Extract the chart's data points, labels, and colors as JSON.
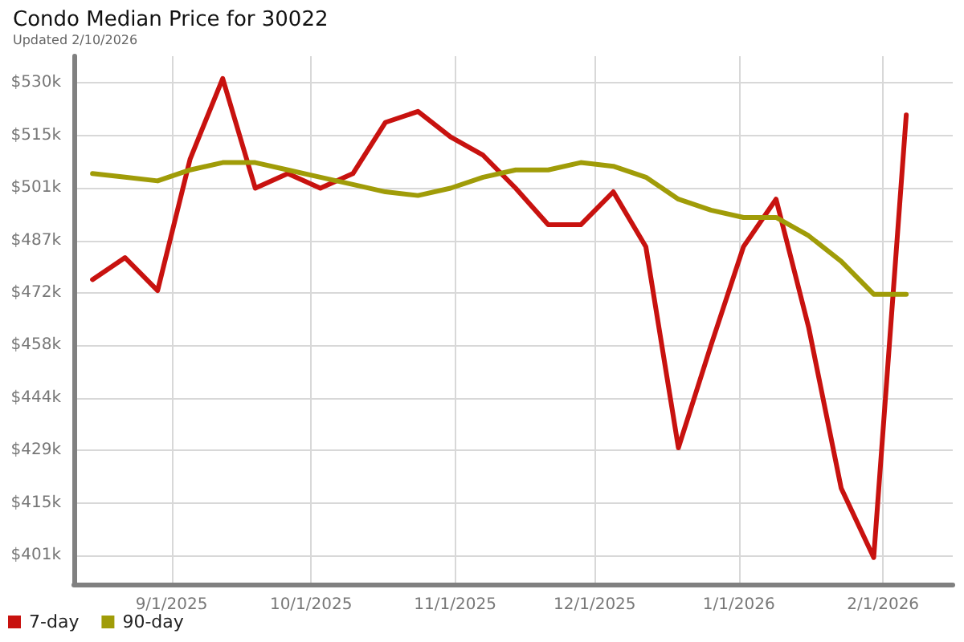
{
  "chart_data": {
    "type": "line",
    "title": "Condo Median Price for 30022",
    "subtitle": "Updated 2/10/2026",
    "x": [
      "2025-08-15",
      "2025-08-22",
      "2025-08-29",
      "2025-09-05",
      "2025-09-12",
      "2025-09-19",
      "2025-09-26",
      "2025-10-03",
      "2025-10-10",
      "2025-10-17",
      "2025-10-24",
      "2025-10-31",
      "2025-11-07",
      "2025-11-14",
      "2025-11-21",
      "2025-11-28",
      "2025-12-05",
      "2025-12-12",
      "2025-12-19",
      "2025-12-26",
      "2026-01-02",
      "2026-01-09",
      "2026-01-16",
      "2026-01-23",
      "2026-01-30",
      "2026-02-06"
    ],
    "series": [
      {
        "name": "7-day",
        "color": "#c8120f",
        "values": [
          476,
          482,
          473,
          509,
          531,
          501,
          505,
          501,
          505,
          519,
          522,
          515,
          510,
          501,
          491,
          491,
          500,
          485,
          430,
          458,
          485,
          498,
          463,
          419,
          400,
          521
        ]
      },
      {
        "name": "90-day",
        "color": "#a09c08",
        "values": [
          505,
          504,
          503,
          506,
          508,
          508,
          506,
          504,
          502,
          500,
          499,
          501,
          504,
          506,
          506,
          508,
          507,
          504,
          498,
          495,
          493,
          493,
          488,
          481,
          472,
          472
        ]
      }
    ],
    "xlim": [
      "2025-08-11",
      "2026-02-16"
    ],
    "xticks": [
      {
        "value": "2025-09-01",
        "label": "9/1/2025"
      },
      {
        "value": "2025-10-01",
        "label": "10/1/2025"
      },
      {
        "value": "2025-11-01",
        "label": "11/1/2025"
      },
      {
        "value": "2025-12-01",
        "label": "12/1/2025"
      },
      {
        "value": "2026-01-01",
        "label": "1/1/2026"
      },
      {
        "value": "2026-02-01",
        "label": "2/1/2026"
      }
    ],
    "ylim": [
      392.7,
      537.1
    ],
    "yticks": [
      {
        "value": 400.6,
        "label": "$401k"
      },
      {
        "value": 414.95,
        "label": "$415k"
      },
      {
        "value": 429.3,
        "label": "$429k"
      },
      {
        "value": 443.65,
        "label": "$444k"
      },
      {
        "value": 458.0,
        "label": "$458k"
      },
      {
        "value": 472.35,
        "label": "$472k"
      },
      {
        "value": 486.7,
        "label": "$487k"
      },
      {
        "value": 501.05,
        "label": "$501k"
      },
      {
        "value": 515.4,
        "label": "$515k"
      },
      {
        "value": 529.75,
        "label": "$530k"
      }
    ],
    "grid": true,
    "legend": "bottom left",
    "marker": "none",
    "line_style": "solid"
  }
}
